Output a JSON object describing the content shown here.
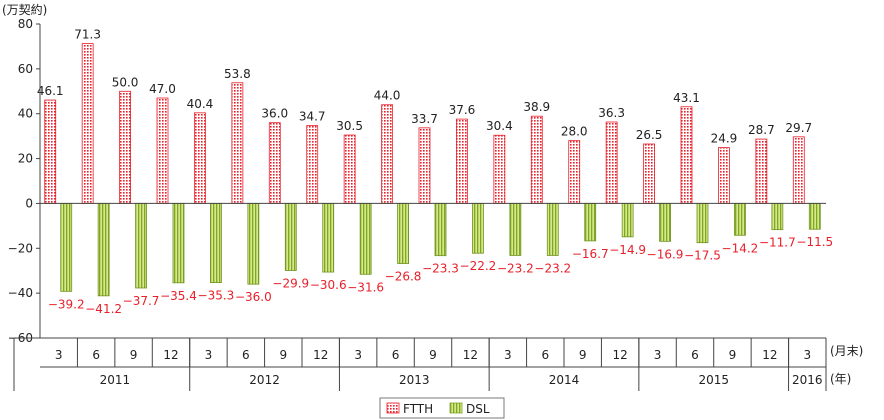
{
  "chart_data": {
    "type": "bar",
    "y_unit": "(万契約)",
    "x_unit_month": "(月末)",
    "x_unit_year": "(年)",
    "ylim": [
      -60,
      80
    ],
    "yticks": [
      -60,
      -40,
      -20,
      0,
      20,
      40,
      60,
      80
    ],
    "ytick_labels": [
      "−60",
      "−40",
      "−20",
      "0",
      "20",
      "40",
      "60",
      "80"
    ],
    "categories": [
      "3",
      "6",
      "9",
      "12",
      "3",
      "6",
      "9",
      "12",
      "3",
      "6",
      "9",
      "12",
      "3",
      "6",
      "9",
      "12",
      "3",
      "6",
      "9",
      "12",
      "3"
    ],
    "years": [
      {
        "label": "2011",
        "count": 4
      },
      {
        "label": "2012",
        "count": 4
      },
      {
        "label": "2013",
        "count": 4
      },
      {
        "label": "2014",
        "count": 4
      },
      {
        "label": "2015",
        "count": 4
      },
      {
        "label": "2016",
        "count": 1
      }
    ],
    "series": [
      {
        "name": "FTTH",
        "color": "#e8202a",
        "values": [
          46.1,
          71.3,
          50.0,
          47.0,
          40.4,
          53.8,
          36.0,
          34.7,
          30.5,
          44.0,
          33.7,
          37.6,
          30.4,
          38.9,
          28.0,
          36.3,
          26.5,
          43.1,
          24.9,
          28.7,
          29.7
        ],
        "labels": [
          "46.1",
          "71.3",
          "50.0",
          "47.0",
          "40.4",
          "53.8",
          "36.0",
          "34.7",
          "30.5",
          "44.0",
          "33.7",
          "37.6",
          "30.4",
          "38.9",
          "28.0",
          "36.3",
          "26.5",
          "43.1",
          "24.9",
          "28.7",
          "29.7"
        ]
      },
      {
        "name": "DSL",
        "color": "#8db62e",
        "values": [
          -39.2,
          -41.2,
          -37.7,
          -35.4,
          -35.3,
          -36.0,
          -29.9,
          -30.6,
          -31.6,
          -26.8,
          -23.3,
          -22.2,
          -23.2,
          -23.2,
          -16.7,
          -14.9,
          -16.9,
          -17.5,
          -14.2,
          -11.7,
          -11.5
        ],
        "labels": [
          "−39.2",
          "−41.2",
          "−37.7",
          "−35.4",
          "−35.3",
          "−36.0",
          "−29.9",
          "−30.6",
          "−31.6",
          "−26.8",
          "−23.3",
          "−22.2",
          "−23.2",
          "−23.2",
          "−16.7",
          "−14.9",
          "−16.9",
          "−17.5",
          "−14.2",
          "−11.7",
          "−11.5"
        ]
      }
    ],
    "legend_position": "bottom-center",
    "grid": false
  }
}
